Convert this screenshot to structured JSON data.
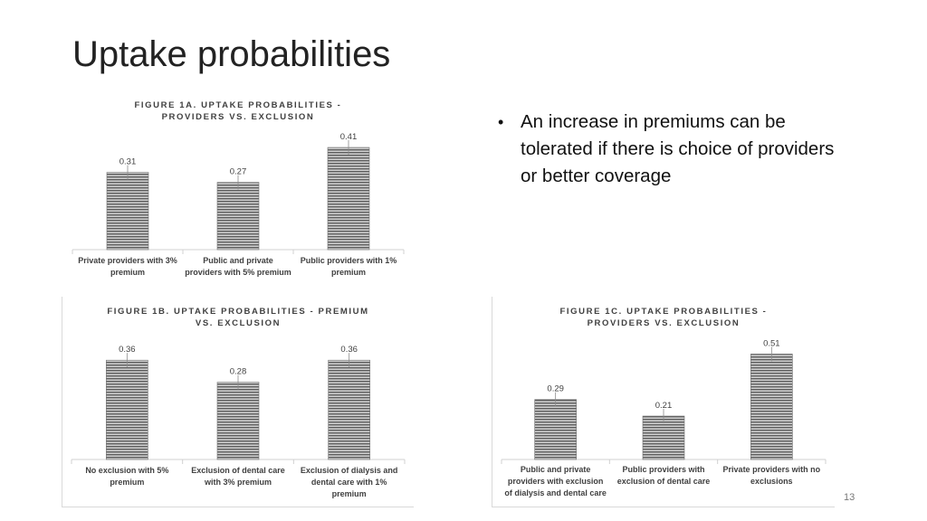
{
  "slide": {
    "title": "Uptake probabilities",
    "bullet": "An increase in premiums can be tolerated if there is choice of providers or better coverage",
    "page_number": "13"
  },
  "colors": {
    "bar_dark": "#5a5a5a",
    "bar_light": "#c8c8c8",
    "text": "#404040"
  },
  "chart_data": [
    {
      "type": "bar",
      "title": "FIGURE 1A. UPTAKE PROBABILITIES - PROVIDERS VS. EXCLUSION",
      "categories": [
        "Private providers with 3% premium",
        "Public and private providers with 5% premium",
        "Public providers with 1% premium"
      ],
      "values": [
        0.31,
        0.27,
        0.41
      ],
      "value_labels": [
        "0.31",
        "0.27",
        "0.41"
      ],
      "ylim": [
        0,
        0.45
      ],
      "error_bars": true,
      "grid": false
    },
    {
      "type": "bar",
      "title": "FIGURE 1B. UPTAKE PROBABILITIES - PREMIUM VS. EXCLUSION",
      "categories": [
        "No exclusion with 5% premium",
        "Exclusion of dental care with 3% premium",
        "Exclusion of dialysis and dental care with 1% premium"
      ],
      "values": [
        0.36,
        0.28,
        0.36
      ],
      "value_labels": [
        "0.36",
        "0.28",
        "0.36"
      ],
      "ylim": [
        0,
        0.4
      ],
      "error_bars": true,
      "grid": false
    },
    {
      "type": "bar",
      "title": "FIGURE 1C. UPTAKE PROBABILITIES - PROVIDERS VS. EXCLUSION",
      "categories": [
        "Public and private providers with exclusion of dialysis and dental care",
        "Public providers with exclusion of dental care",
        "Private providers with no exclusions"
      ],
      "values": [
        0.29,
        0.21,
        0.51
      ],
      "value_labels": [
        "0.29",
        "0.21",
        "0.51"
      ],
      "ylim": [
        0,
        0.7
      ],
      "error_bars": true,
      "grid": false
    }
  ]
}
